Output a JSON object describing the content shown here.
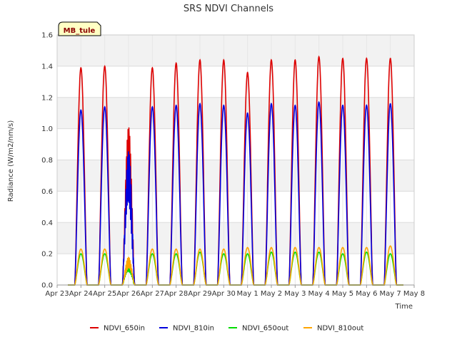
{
  "chart_data": {
    "type": "line",
    "title": "SRS NDVI Channels",
    "xlabel": "Time",
    "ylabel": "Radiance (W/m2/nm/s)",
    "ylim": [
      0,
      1.6
    ],
    "yticks": [
      "0.0",
      "0.2",
      "0.4",
      "0.6",
      "0.8",
      "1.0",
      "1.2",
      "1.4",
      "1.6"
    ],
    "xlim_days": [
      23,
      38
    ],
    "xticks": [
      "Apr 23",
      "Apr 24",
      "Apr 25",
      "Apr 26",
      "Apr 27",
      "Apr 28",
      "Apr 29",
      "Apr 30",
      "May 1",
      "May 2",
      "May 3",
      "May 4",
      "May 5",
      "May 6",
      "May 7",
      "May 8"
    ],
    "grid": true,
    "legend_position": "bottom",
    "site_label": "MB_tule",
    "day_start": 24,
    "series": [
      {
        "name": "NDVI_650in",
        "color": "#dd0000",
        "daily_peak": [
          1.39,
          1.4,
          1.03,
          1.39,
          1.42,
          1.44,
          1.44,
          1.36,
          1.44,
          1.44,
          1.46,
          1.45,
          1.45,
          1.45
        ]
      },
      {
        "name": "NDVI_810in",
        "color": "#0000dd",
        "daily_peak": [
          1.12,
          1.14,
          0.86,
          1.14,
          1.15,
          1.16,
          1.15,
          1.1,
          1.16,
          1.15,
          1.17,
          1.15,
          1.15,
          1.16
        ]
      },
      {
        "name": "NDVI_650out",
        "color": "#00dd00",
        "daily_peak": [
          0.2,
          0.2,
          0.15,
          0.2,
          0.2,
          0.21,
          0.2,
          0.2,
          0.21,
          0.21,
          0.21,
          0.2,
          0.21,
          0.2
        ]
      },
      {
        "name": "NDVI_810out",
        "color": "#ffa500",
        "daily_peak": [
          0.23,
          0.23,
          0.18,
          0.23,
          0.23,
          0.23,
          0.23,
          0.24,
          0.24,
          0.24,
          0.24,
          0.24,
          0.24,
          0.25
        ]
      }
    ]
  }
}
